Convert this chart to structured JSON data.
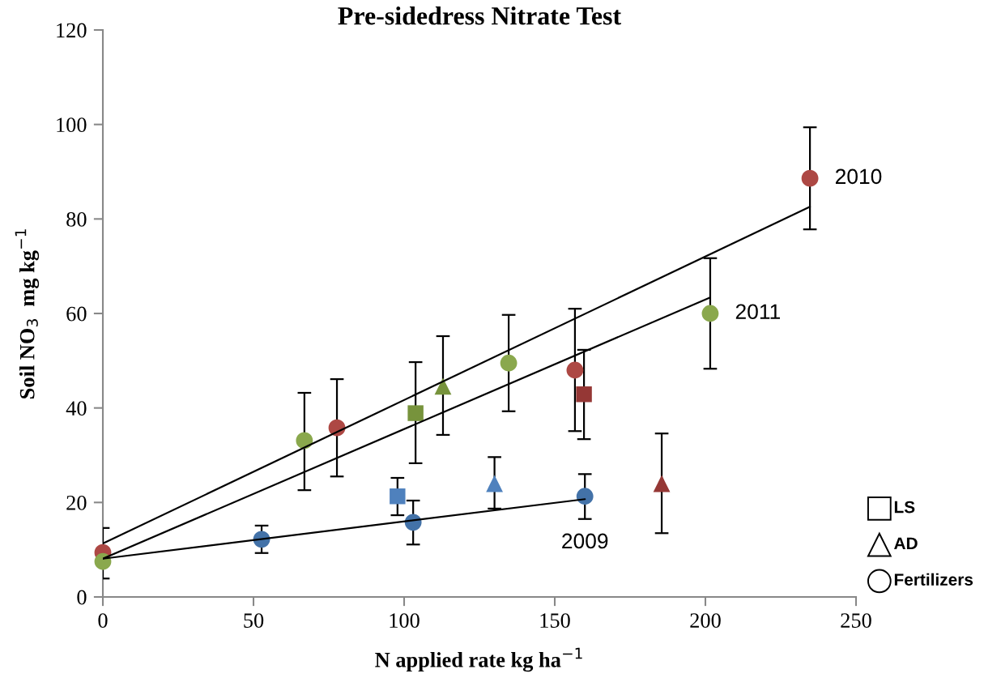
{
  "chart_data": {
    "type": "scatter",
    "title": "Pre-sidedress Nitrate Test",
    "xlabel": "N applied rate kg ha$^{−1}$",
    "ylabel": "Soil NO$_{3}$  mg kg$^{−1}$",
    "xlim": [
      0,
      250
    ],
    "xticks": [
      0,
      50,
      100,
      150,
      200,
      250
    ],
    "ylim": [
      0,
      120
    ],
    "yticks": [
      0,
      20,
      40,
      60,
      80,
      100,
      120
    ],
    "grid": false,
    "series": [
      {
        "type": "line",
        "x": [
          0,
          234.7
        ],
        "values": [
          11.3,
          82.6
        ],
        "color": "#000000",
        "marker": "none"
      },
      {
        "type": "line",
        "x": [
          0,
          201.6
        ],
        "values": [
          8.1,
          63.4
        ],
        "color": "#000000",
        "marker": "none"
      },
      {
        "type": "line",
        "x": [
          0,
          160
        ],
        "values": [
          8.1,
          20.7
        ],
        "color": "#000000",
        "marker": "none"
      },
      {
        "marker": "square",
        "x": [
          97.8,
          159.7,
          103.8
        ],
        "values": [
          21.3,
          42.9,
          38.9
        ],
        "colors": [
          "#4f81bd",
          "#953735",
          "#77933c"
        ],
        "errors": [
          [
            17.3,
            25.2
          ],
          [
            33.4,
            52.3
          ],
          [
            28.3,
            49.7
          ]
        ]
      },
      {
        "marker": "triangle",
        "x": [
          130,
          185.5,
          112.9
        ],
        "values": [
          24,
          24,
          44.6
        ],
        "colors": [
          "#4f81bd",
          "#953735",
          "#77933c"
        ],
        "errors": [
          [
            18.7,
            29.6
          ],
          [
            13.5,
            34.6
          ],
          [
            34.3,
            55.2
          ]
        ]
      },
      {
        "marker": "circle",
        "x": [
          52.7,
          103,
          160,
          0,
          77.7,
          156.7,
          234.7,
          0,
          66.9,
          134.7,
          201.6
        ],
        "values": [
          12.2,
          15.8,
          21.3,
          9.4,
          35.8,
          48.0,
          88.6,
          7.5,
          33.1,
          49.5,
          60.0
        ],
        "colors": [
          "#4372a8",
          "#4372a8",
          "#4372a8",
          "#ad4844",
          "#ad4844",
          "#ad4844",
          "#ad4844",
          "#8aa84d",
          "#8aa84d",
          "#8aa84d",
          "#8aa84d"
        ],
        "errors": [
          [
            9.3,
            15.1
          ],
          [
            11.1,
            20.4
          ],
          [
            16.5,
            26.0
          ],
          [
            3.9,
            14.6
          ],
          [
            25.5,
            46.1
          ],
          [
            35.1,
            61.0
          ],
          [
            77.8,
            99.4
          ],
          null,
          [
            22.6,
            43.2
          ],
          [
            39.3,
            59.7
          ],
          [
            48.3,
            71.7
          ]
        ]
      }
    ],
    "annotations": [
      {
        "text": "2010",
        "x": 234.7,
        "y": 88.6
      },
      {
        "text": "2011",
        "x": 201.6,
        "y": 60.0
      },
      {
        "text": "2009",
        "x": 160,
        "y": 20.7
      },
      "LS",
      "AD",
      "Fertilizers"
    ]
  }
}
